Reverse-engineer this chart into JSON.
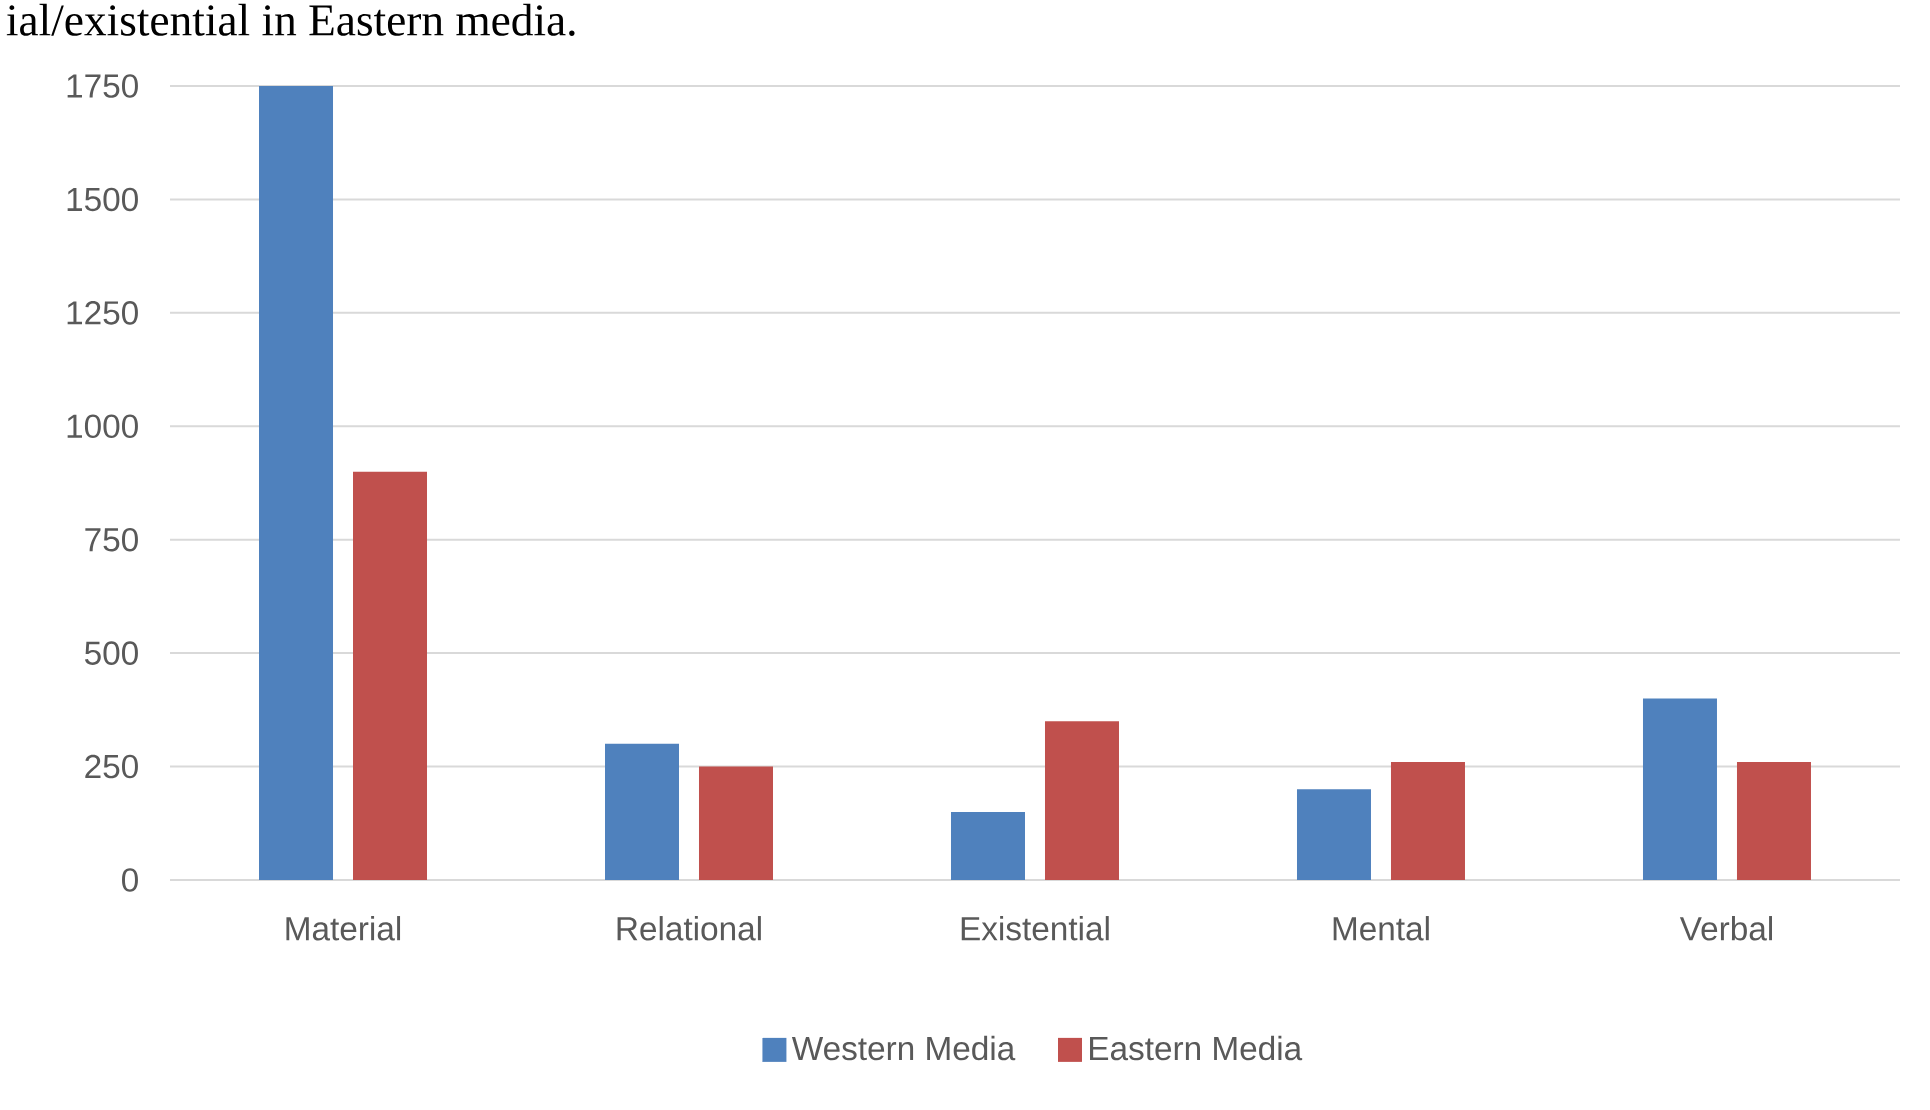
{
  "chart_data": {
    "type": "bar",
    "annotations": [
      "ial/existential in Eastern media."
    ],
    "categories": [
      "Material",
      "Relational",
      "Existential",
      "Mental",
      "Verbal"
    ],
    "series": [
      {
        "name": "Western Media",
        "color": "#4f81bd",
        "values": [
          1750,
          300,
          150,
          200,
          400
        ]
      },
      {
        "name": "Eastern Media",
        "color": "#c0504d",
        "values": [
          900,
          250,
          350,
          260,
          260
        ]
      }
    ],
    "ylim": [
      0,
      1750
    ],
    "yticks": [
      0,
      250,
      500,
      750,
      1000,
      1250,
      1500,
      1750
    ],
    "grid": "y",
    "legend": "bottom"
  }
}
